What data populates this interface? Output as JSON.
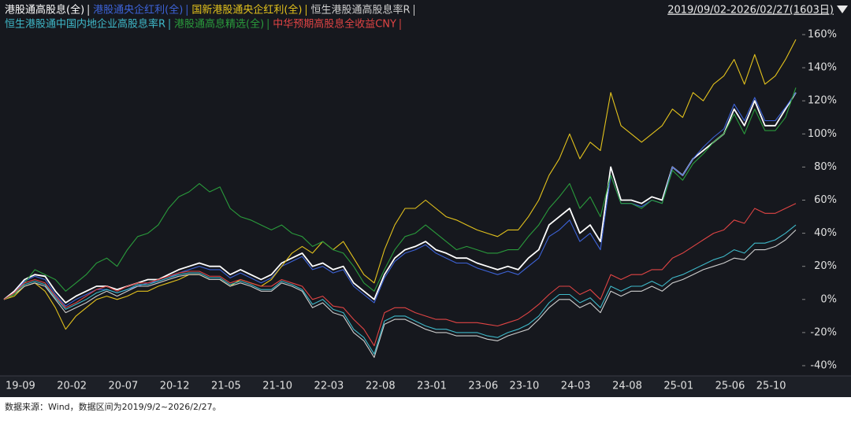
{
  "chart_data": {
    "type": "line",
    "date_range": "2019/09/02-2026/02/27(1603日)",
    "source": "数据来源：Wind，数据区间为2019/9/2~2026/2/27。",
    "categories": [
      "19-09",
      null,
      null,
      null,
      null,
      "20-02",
      null,
      null,
      null,
      null,
      "20-07",
      null,
      null,
      null,
      null,
      "20-12",
      null,
      null,
      null,
      null,
      "21-05",
      null,
      null,
      null,
      null,
      "21-10",
      null,
      null,
      null,
      null,
      "22-03",
      null,
      null,
      null,
      null,
      "22-08",
      null,
      null,
      null,
      null,
      "23-01",
      null,
      null,
      null,
      null,
      "23-06",
      null,
      null,
      null,
      "23-10",
      null,
      null,
      null,
      null,
      "24-03",
      null,
      null,
      null,
      null,
      "24-08",
      null,
      null,
      null,
      null,
      "25-01",
      null,
      null,
      null,
      null,
      "25-06",
      null,
      null,
      null,
      "25-10",
      null,
      null,
      null,
      null
    ],
    "ylim": [
      -45,
      165
    ],
    "yticks": [
      {
        "value": -40,
        "label": "-40%"
      },
      {
        "value": -20,
        "label": "-20%"
      },
      {
        "value": 0,
        "label": "0%"
      },
      {
        "value": 20,
        "label": "20%"
      },
      {
        "value": 40,
        "label": "40%"
      },
      {
        "value": 60,
        "label": "60%"
      },
      {
        "value": 80,
        "label": "80%"
      },
      {
        "value": 100,
        "label": "100%"
      },
      {
        "value": 120,
        "label": "120%"
      },
      {
        "value": 140,
        "label": "140%"
      },
      {
        "value": 160,
        "label": "160%"
      }
    ],
    "series": [
      {
        "name": "港股通高股息(全)",
        "color": "#ffffff",
        "values": [
          0,
          5,
          12,
          15,
          14,
          5,
          -2,
          2,
          5,
          8,
          8,
          6,
          8,
          10,
          12,
          12,
          15,
          18,
          20,
          22,
          20,
          20,
          15,
          18,
          15,
          12,
          15,
          22,
          25,
          28,
          20,
          22,
          18,
          20,
          10,
          5,
          0,
          15,
          25,
          30,
          32,
          35,
          30,
          28,
          25,
          25,
          22,
          20,
          18,
          20,
          18,
          25,
          30,
          45,
          50,
          55,
          40,
          45,
          35,
          80,
          60,
          60,
          58,
          62,
          60,
          80,
          75,
          85,
          90,
          95,
          100,
          115,
          105,
          120,
          105,
          105,
          115,
          125
        ]
      },
      {
        "name": "港股通央企红利(全)",
        "color": "#3d63d8",
        "values": [
          0,
          4,
          11,
          14,
          12,
          3,
          -4,
          0,
          3,
          6,
          6,
          4,
          6,
          8,
          10,
          11,
          13,
          16,
          18,
          20,
          18,
          18,
          13,
          16,
          13,
          10,
          13,
          20,
          23,
          26,
          18,
          20,
          16,
          18,
          8,
          3,
          -2,
          13,
          23,
          28,
          30,
          33,
          28,
          25,
          22,
          22,
          19,
          17,
          15,
          17,
          15,
          20,
          25,
          38,
          42,
          48,
          35,
          40,
          30,
          75,
          58,
          58,
          56,
          60,
          58,
          80,
          75,
          85,
          92,
          98,
          103,
          118,
          108,
          122,
          108,
          108,
          116,
          125
        ]
      },
      {
        "name": "国新港股通央企红利(全)",
        "color": "#e3c21c",
        "values": [
          0,
          2,
          8,
          10,
          5,
          -5,
          -18,
          -10,
          -5,
          0,
          2,
          0,
          2,
          5,
          5,
          8,
          10,
          12,
          15,
          15,
          12,
          12,
          8,
          12,
          10,
          8,
          12,
          20,
          28,
          32,
          28,
          35,
          30,
          35,
          25,
          15,
          10,
          30,
          45,
          55,
          55,
          60,
          55,
          50,
          48,
          45,
          42,
          40,
          38,
          42,
          42,
          50,
          60,
          75,
          85,
          100,
          85,
          95,
          90,
          125,
          105,
          100,
          95,
          100,
          105,
          115,
          110,
          125,
          120,
          130,
          135,
          145,
          130,
          148,
          130,
          135,
          145,
          157
        ]
      },
      {
        "name": "恒生港股通高股息率R",
        "color": "#cfcfcf",
        "values": [
          0,
          3,
          8,
          10,
          8,
          0,
          -8,
          -5,
          -2,
          2,
          5,
          2,
          5,
          8,
          8,
          10,
          12,
          14,
          15,
          15,
          12,
          12,
          8,
          10,
          8,
          5,
          5,
          10,
          8,
          5,
          -5,
          -2,
          -8,
          -10,
          -20,
          -25,
          -35,
          -15,
          -12,
          -12,
          -15,
          -18,
          -20,
          -20,
          -22,
          -22,
          -22,
          -24,
          -25,
          -22,
          -20,
          -18,
          -12,
          -5,
          0,
          0,
          -5,
          -2,
          -8,
          5,
          2,
          5,
          5,
          8,
          5,
          10,
          12,
          15,
          18,
          20,
          22,
          25,
          24,
          30,
          30,
          32,
          36,
          42
        ]
      },
      {
        "name": "恒生港股通中国内地企业高股息率R",
        "color": "#3fb9c9",
        "values": [
          0,
          4,
          9,
          11,
          9,
          1,
          -6,
          -3,
          0,
          4,
          6,
          4,
          6,
          9,
          9,
          11,
          13,
          15,
          16,
          16,
          13,
          13,
          9,
          11,
          9,
          6,
          6,
          11,
          9,
          6,
          -3,
          0,
          -6,
          -8,
          -18,
          -23,
          -33,
          -13,
          -10,
          -10,
          -13,
          -16,
          -18,
          -18,
          -20,
          -20,
          -20,
          -22,
          -23,
          -20,
          -18,
          -15,
          -10,
          -2,
          3,
          3,
          -2,
          1,
          -5,
          8,
          5,
          8,
          8,
          11,
          8,
          13,
          15,
          18,
          21,
          24,
          26,
          30,
          28,
          34,
          34,
          36,
          40,
          45
        ]
      },
      {
        "name": "港股通高息精选(全)",
        "color": "#2a9c3c",
        "values": [
          0,
          3,
          10,
          18,
          15,
          12,
          5,
          10,
          15,
          22,
          25,
          20,
          30,
          38,
          40,
          45,
          55,
          62,
          65,
          70,
          65,
          68,
          55,
          50,
          48,
          45,
          42,
          45,
          40,
          38,
          32,
          35,
          30,
          28,
          20,
          10,
          5,
          18,
          30,
          38,
          40,
          45,
          40,
          35,
          30,
          32,
          30,
          28,
          28,
          30,
          30,
          38,
          45,
          55,
          62,
          70,
          55,
          62,
          50,
          75,
          58,
          58,
          55,
          60,
          58,
          78,
          72,
          82,
          88,
          95,
          100,
          112,
          100,
          115,
          102,
          102,
          110,
          128
        ]
      },
      {
        "name": "中华预期高股息全收益CNY",
        "color": "#e04444",
        "values": [
          0,
          4,
          10,
          12,
          10,
          2,
          -5,
          -2,
          2,
          6,
          8,
          5,
          8,
          10,
          10,
          12,
          14,
          16,
          17,
          17,
          14,
          14,
          10,
          12,
          10,
          8,
          8,
          12,
          10,
          8,
          0,
          2,
          -4,
          -5,
          -12,
          -18,
          -28,
          -8,
          -5,
          -5,
          -8,
          -10,
          -12,
          -12,
          -14,
          -14,
          -14,
          -15,
          -16,
          -14,
          -12,
          -8,
          -3,
          3,
          8,
          8,
          3,
          6,
          0,
          15,
          12,
          15,
          15,
          18,
          18,
          25,
          28,
          32,
          36,
          40,
          42,
          48,
          46,
          55,
          52,
          52,
          55,
          58
        ]
      }
    ]
  }
}
